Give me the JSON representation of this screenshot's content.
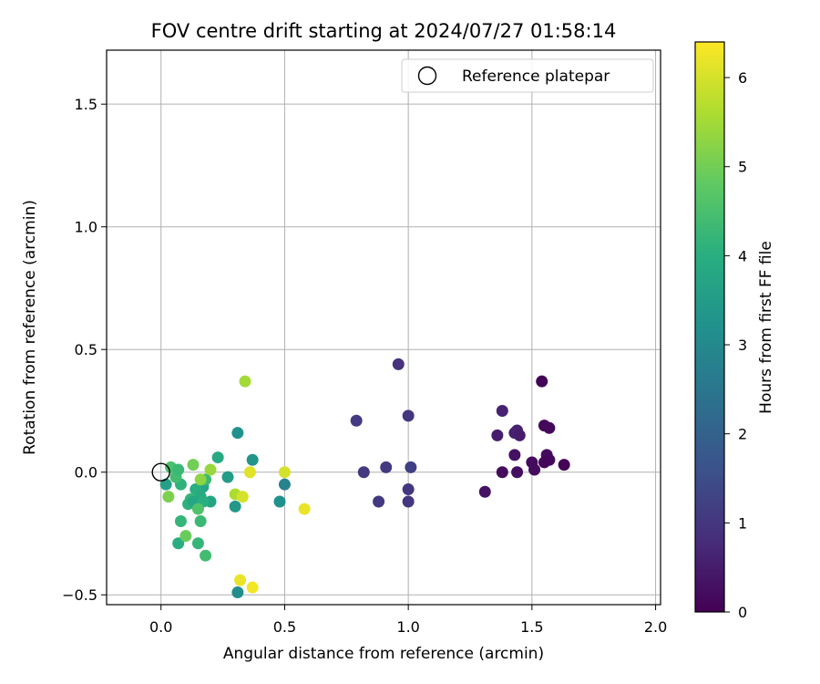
{
  "chart_data": {
    "type": "scatter",
    "title": "FOV centre drift starting at 2024/07/27 01:58:14",
    "xlabel": "Angular distance from reference (arcmin)",
    "ylabel": "Rotation from reference (arcmin)",
    "xlim": [
      -0.22,
      2.02
    ],
    "ylim": [
      -0.54,
      1.72
    ],
    "xticks": [
      0.0,
      0.5,
      1.0,
      1.5,
      2.0
    ],
    "xtick_labels": [
      "0.0",
      "0.5",
      "1.0",
      "1.5",
      "2.0"
    ],
    "yticks": [
      -0.5,
      0.0,
      0.5,
      1.0,
      1.5
    ],
    "ytick_labels": [
      "−0.5",
      "0.0",
      "0.5",
      "1.0",
      "1.5"
    ],
    "grid": true,
    "legend": {
      "placement": "top-right",
      "entries": [
        {
          "label": "Reference platepar",
          "marker": "open-circle"
        }
      ]
    },
    "reference_point": {
      "x": 0.0,
      "y": 0.0
    },
    "colorbar": {
      "label": "Hours from first FF file",
      "colormap": "viridis",
      "range": [
        0,
        6.4
      ],
      "ticks": [
        0,
        1,
        2,
        3,
        4,
        5,
        6
      ],
      "tick_labels": [
        "0",
        "1",
        "2",
        "3",
        "4",
        "5",
        "6"
      ]
    },
    "points": [
      {
        "x": 1.54,
        "y": 0.37,
        "c": 0.05
      },
      {
        "x": 1.55,
        "y": 0.19,
        "c": 0.1
      },
      {
        "x": 1.57,
        "y": 0.18,
        "c": 0.15
      },
      {
        "x": 1.38,
        "y": 0.25,
        "c": 0.6
      },
      {
        "x": 1.36,
        "y": 0.15,
        "c": 0.5
      },
      {
        "x": 1.43,
        "y": 0.16,
        "c": 0.55
      },
      {
        "x": 1.44,
        "y": 0.17,
        "c": 0.6
      },
      {
        "x": 1.45,
        "y": 0.15,
        "c": 0.5
      },
      {
        "x": 1.43,
        "y": 0.07,
        "c": 0.3
      },
      {
        "x": 1.56,
        "y": 0.07,
        "c": 0.2
      },
      {
        "x": 1.57,
        "y": 0.05,
        "c": 0.15
      },
      {
        "x": 1.55,
        "y": 0.04,
        "c": 0.1
      },
      {
        "x": 1.5,
        "y": 0.04,
        "c": 0.2
      },
      {
        "x": 1.63,
        "y": 0.03,
        "c": 0.05
      },
      {
        "x": 1.38,
        "y": 0.0,
        "c": 0.2
      },
      {
        "x": 1.44,
        "y": 0.0,
        "c": 0.25
      },
      {
        "x": 1.51,
        "y": 0.01,
        "c": 0.2
      },
      {
        "x": 1.31,
        "y": -0.08,
        "c": 0.3
      },
      {
        "x": 0.96,
        "y": 0.44,
        "c": 0.9
      },
      {
        "x": 0.79,
        "y": 0.21,
        "c": 1.1
      },
      {
        "x": 1.0,
        "y": 0.23,
        "c": 1.0
      },
      {
        "x": 0.82,
        "y": 0.0,
        "c": 1.05
      },
      {
        "x": 0.91,
        "y": 0.02,
        "c": 1.1
      },
      {
        "x": 1.01,
        "y": 0.02,
        "c": 1.2
      },
      {
        "x": 1.0,
        "y": -0.07,
        "c": 1.0
      },
      {
        "x": 0.88,
        "y": -0.12,
        "c": 1.05
      },
      {
        "x": 1.0,
        "y": -0.12,
        "c": 1.0
      },
      {
        "x": 0.31,
        "y": 0.16,
        "c": 3.2
      },
      {
        "x": 0.37,
        "y": 0.05,
        "c": 3.3
      },
      {
        "x": 0.5,
        "y": -0.05,
        "c": 2.8
      },
      {
        "x": 0.48,
        "y": -0.12,
        "c": 3.2
      },
      {
        "x": 0.27,
        "y": -0.02,
        "c": 3.5
      },
      {
        "x": 0.3,
        "y": -0.14,
        "c": 3.4
      },
      {
        "x": 0.31,
        "y": -0.49,
        "c": 3.1
      },
      {
        "x": 0.02,
        "y": -0.05,
        "c": 3.6
      },
      {
        "x": 0.23,
        "y": 0.06,
        "c": 3.9
      },
      {
        "x": 0.2,
        "y": -0.12,
        "c": 3.7
      },
      {
        "x": 0.17,
        "y": -0.06,
        "c": 3.8
      },
      {
        "x": 0.14,
        "y": -0.07,
        "c": 4.0
      },
      {
        "x": 0.16,
        "y": -0.1,
        "c": 3.9
      },
      {
        "x": 0.12,
        "y": -0.11,
        "c": 4.2
      },
      {
        "x": 0.11,
        "y": -0.13,
        "c": 4.1
      },
      {
        "x": 0.13,
        "y": -0.12,
        "c": 3.8
      },
      {
        "x": 0.17,
        "y": -0.12,
        "c": 4.0
      },
      {
        "x": 0.18,
        "y": -0.03,
        "c": 4.3
      },
      {
        "x": 0.08,
        "y": -0.05,
        "c": 4.1
      },
      {
        "x": 0.06,
        "y": -0.02,
        "c": 4.4
      },
      {
        "x": 0.04,
        "y": 0.02,
        "c": 4.5
      },
      {
        "x": 0.07,
        "y": 0.01,
        "c": 4.3
      },
      {
        "x": 0.08,
        "y": -0.2,
        "c": 4.2
      },
      {
        "x": 0.07,
        "y": -0.29,
        "c": 4.0
      },
      {
        "x": 0.16,
        "y": -0.2,
        "c": 4.3
      },
      {
        "x": 0.15,
        "y": -0.29,
        "c": 4.2
      },
      {
        "x": 0.18,
        "y": -0.34,
        "c": 4.4
      },
      {
        "x": 0.15,
        "y": -0.15,
        "c": 4.6
      },
      {
        "x": 0.1,
        "y": -0.26,
        "c": 4.9
      },
      {
        "x": 0.13,
        "y": 0.03,
        "c": 5.0
      },
      {
        "x": 0.16,
        "y": -0.03,
        "c": 5.3
      },
      {
        "x": 0.2,
        "y": 0.01,
        "c": 5.4
      },
      {
        "x": 0.03,
        "y": -0.1,
        "c": 5.1
      },
      {
        "x": 0.34,
        "y": 0.37,
        "c": 5.5
      },
      {
        "x": 0.3,
        "y": -0.09,
        "c": 5.6
      },
      {
        "x": 0.33,
        "y": -0.1,
        "c": 6.0
      },
      {
        "x": 0.36,
        "y": 0.0,
        "c": 6.1
      },
      {
        "x": 0.5,
        "y": 0.0,
        "c": 6.0
      },
      {
        "x": 0.58,
        "y": -0.15,
        "c": 6.2
      },
      {
        "x": 0.32,
        "y": -0.44,
        "c": 6.2
      },
      {
        "x": 0.37,
        "y": -0.47,
        "c": 6.3
      }
    ]
  }
}
